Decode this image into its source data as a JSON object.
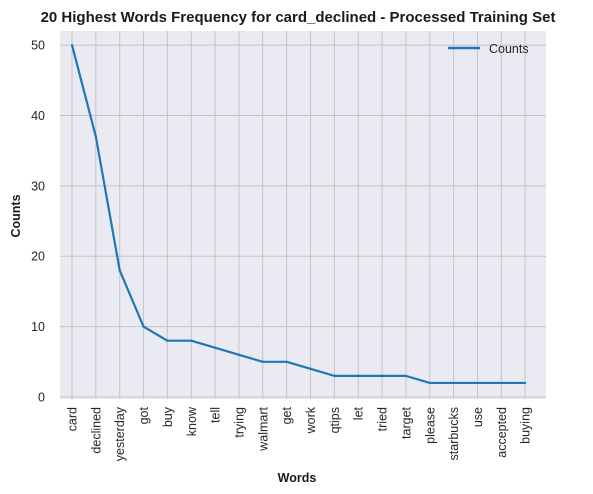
{
  "chart_data": {
    "type": "line",
    "title": "20 Highest Words Frequency for card_declined - Processed Training Set",
    "xlabel": "Words",
    "ylabel": "Counts",
    "categories": [
      "card",
      "declined",
      "yesterday",
      "got",
      "buy",
      "know",
      "tell",
      "trying",
      "walmart",
      "get",
      "work",
      "qtips",
      "let",
      "tried",
      "target",
      "please",
      "starbucks",
      "use",
      "accepted",
      "buying"
    ],
    "series": [
      {
        "name": "Counts",
        "values": [
          50,
          37,
          18,
          10,
          8,
          8,
          7,
          6,
          5,
          5,
          4,
          3,
          3,
          3,
          3,
          2,
          2,
          2,
          2,
          2
        ]
      }
    ],
    "yticks": [
      0,
      10,
      20,
      30,
      40,
      50
    ],
    "ylim": [
      0,
      52
    ],
    "grid": true,
    "legend_position": "top-right",
    "colors": {
      "line": "#1f77b4",
      "plot_background": "#eaeaf2",
      "grid": "#c4c4c4"
    }
  }
}
